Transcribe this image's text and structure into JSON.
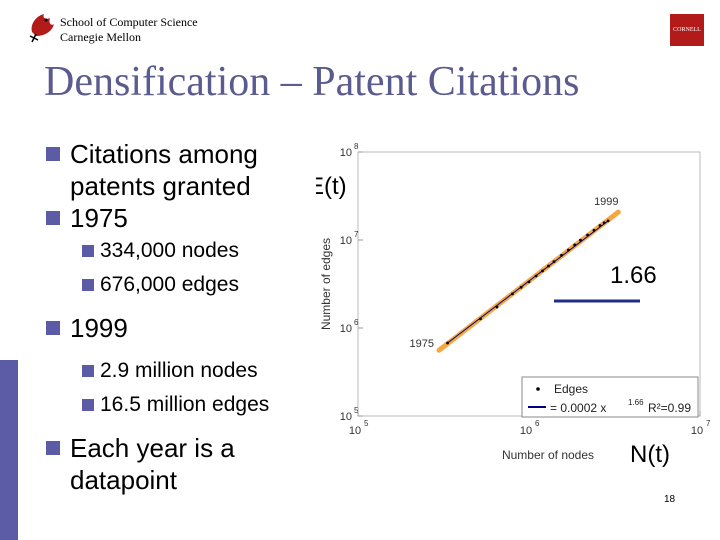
{
  "header": {
    "school": "School of Computer Science",
    "university": "Carnegie Mellon",
    "badge_text": "CORNELL",
    "logo_icon": "griffin-logo-icon"
  },
  "title": "Densification – Patent Citations",
  "bullets": {
    "b1_line1": "Citations among",
    "b1_line2": "patents granted",
    "b2": "1975",
    "b2_sub": [
      "334,000 nodes",
      "676,000 edges"
    ],
    "b3": "1999",
    "b3_sub": [
      "2.9 million nodes",
      "16.5 million edges"
    ],
    "b4_line1": "Each year is a",
    "b4_line2": "datapoint"
  },
  "annotations": {
    "et": "E(t)",
    "nt": "N(t)",
    "slope": "1.66"
  },
  "chart_data": {
    "type": "scatter",
    "xscale": "log",
    "yscale": "log",
    "xlim": [
      100000,
      10000000
    ],
    "ylim": [
      100000,
      100000000
    ],
    "xlabel": "Number of nodes",
    "ylabel": "Number of edges",
    "xticks": [
      {
        "value": 100000,
        "base": "10",
        "exp": "5"
      },
      {
        "value": 1000000,
        "base": "10",
        "exp": "6"
      },
      {
        "value": 10000000,
        "base": "10",
        "exp": "7"
      }
    ],
    "yticks": [
      {
        "value": 100000,
        "base": "10",
        "exp": "5"
      },
      {
        "value": 1000000,
        "base": "10",
        "exp": "6"
      },
      {
        "value": 10000000,
        "base": "10",
        "exp": "7"
      },
      {
        "value": 100000000,
        "base": "10",
        "exp": "8"
      }
    ],
    "point_labels": [
      {
        "text": "1975",
        "x": 334000,
        "y": 676000
      },
      {
        "text": "1999",
        "x": 2900000,
        "y": 16500000
      }
    ],
    "series": [
      {
        "name": "Edges",
        "points": [
          [
            334000,
            676000
          ],
          [
            520000,
            1270000
          ],
          [
            650000,
            1730000
          ],
          [
            800000,
            2440000
          ],
          [
            900000,
            2900000
          ],
          [
            1000000,
            3340000
          ],
          [
            1100000,
            3900000
          ],
          [
            1200000,
            4460000
          ],
          [
            1300000,
            5060000
          ],
          [
            1400000,
            5670000
          ],
          [
            1550000,
            6700000
          ],
          [
            1700000,
            7700000
          ],
          [
            1850000,
            8800000
          ],
          [
            2000000,
            9960000
          ],
          [
            2200000,
            11400000
          ],
          [
            2400000,
            12900000
          ],
          [
            2600000,
            14600000
          ],
          [
            2750000,
            15700000
          ],
          [
            2900000,
            16500000
          ]
        ]
      }
    ],
    "fit": {
      "prefix": "= 0.0002 x",
      "exponent": "1.66",
      "r2": "R²=0.99"
    },
    "legend_position": "bottom-right",
    "colors": {
      "points": "#000000",
      "fit_line": "#000080",
      "highlight": "#f4a742",
      "slope_line": "#1f2e86"
    }
  },
  "page_number": "18"
}
